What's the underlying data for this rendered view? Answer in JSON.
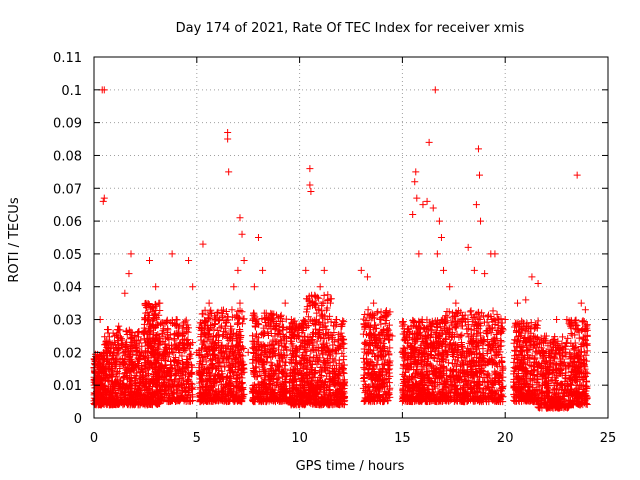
{
  "chart_data": {
    "type": "scatter",
    "title": "Day 174 of 2021, Rate Of TEC Index for receiver xmis",
    "xlabel": "GPS time / hours",
    "ylabel": "ROTI / TECUs",
    "xlim": [
      0,
      25
    ],
    "ylim": [
      0,
      0.11
    ],
    "xticks": [
      0,
      5,
      10,
      15,
      20,
      25
    ],
    "yticks": [
      0,
      0.01,
      0.02,
      0.03,
      0.04,
      0.05,
      0.06,
      0.07,
      0.08,
      0.09,
      0.1,
      0.11
    ],
    "xtick_labels": [
      "0",
      "5",
      "10",
      "15",
      "20",
      "25"
    ],
    "ytick_labels": [
      "0",
      "0.01",
      "0.02",
      "0.03",
      "0.04",
      "0.05",
      "0.06",
      "0.07",
      "0.08",
      "0.09",
      "0.1",
      "0.11"
    ],
    "grid": true,
    "marker": "+",
    "color": "#ff0000",
    "series": [
      {
        "points": [
          [
            0.1,
            0.012
          ],
          [
            0.2,
            0.018
          ],
          [
            0.3,
            0.03
          ],
          [
            0.4,
            0.1
          ],
          [
            0.5,
            0.1
          ],
          [
            0.45,
            0.066
          ],
          [
            0.5,
            0.067
          ],
          [
            0.6,
            0.015
          ],
          [
            0.8,
            0.02
          ],
          [
            1.0,
            0.025
          ],
          [
            1.2,
            0.028
          ],
          [
            1.5,
            0.038
          ],
          [
            1.7,
            0.044
          ],
          [
            1.8,
            0.05
          ],
          [
            2.0,
            0.022
          ],
          [
            2.2,
            0.018
          ],
          [
            2.5,
            0.03
          ],
          [
            2.7,
            0.048
          ],
          [
            3.0,
            0.04
          ],
          [
            3.2,
            0.035
          ],
          [
            3.5,
            0.02
          ],
          [
            3.8,
            0.05
          ],
          [
            4.0,
            0.03
          ],
          [
            4.3,
            0.025
          ],
          [
            4.6,
            0.048
          ],
          [
            4.8,
            0.04
          ],
          [
            5.0,
            0.02
          ],
          [
            5.3,
            0.053
          ],
          [
            5.6,
            0.035
          ],
          [
            5.9,
            0.03
          ],
          [
            6.2,
            0.028
          ],
          [
            6.5,
            0.087
          ],
          [
            6.5,
            0.085
          ],
          [
            6.55,
            0.075
          ],
          [
            6.8,
            0.04
          ],
          [
            7.0,
            0.045
          ],
          [
            7.1,
            0.061
          ],
          [
            7.2,
            0.056
          ],
          [
            7.3,
            0.048
          ],
          [
            7.1,
            0.035
          ],
          [
            7.5,
            0.02
          ],
          [
            7.8,
            0.04
          ],
          [
            8.0,
            0.055
          ],
          [
            8.2,
            0.045
          ],
          [
            8.5,
            0.03
          ],
          [
            8.8,
            0.025
          ],
          [
            9.0,
            0.028
          ],
          [
            9.3,
            0.035
          ],
          [
            9.6,
            0.03
          ],
          [
            10.0,
            0.028
          ],
          [
            10.3,
            0.045
          ],
          [
            10.5,
            0.076
          ],
          [
            10.5,
            0.071
          ],
          [
            10.55,
            0.069
          ],
          [
            10.8,
            0.035
          ],
          [
            11.0,
            0.04
          ],
          [
            11.2,
            0.045
          ],
          [
            11.5,
            0.035
          ],
          [
            11.8,
            0.03
          ],
          [
            12.0,
            0.025
          ],
          [
            13.0,
            0.045
          ],
          [
            13.3,
            0.043
          ],
          [
            13.6,
            0.035
          ],
          [
            13.9,
            0.03
          ],
          [
            14.2,
            0.032
          ],
          [
            14.5,
            0.025
          ],
          [
            15.0,
            0.028
          ],
          [
            15.2,
            0.025
          ],
          [
            15.5,
            0.062
          ],
          [
            15.6,
            0.072
          ],
          [
            15.65,
            0.075
          ],
          [
            15.7,
            0.067
          ],
          [
            15.8,
            0.05
          ],
          [
            16.0,
            0.065
          ],
          [
            16.2,
            0.066
          ],
          [
            16.3,
            0.084
          ],
          [
            16.5,
            0.064
          ],
          [
            16.6,
            0.1
          ],
          [
            16.7,
            0.05
          ],
          [
            16.8,
            0.06
          ],
          [
            16.9,
            0.055
          ],
          [
            17.0,
            0.045
          ],
          [
            17.3,
            0.04
          ],
          [
            17.6,
            0.035
          ],
          [
            17.9,
            0.03
          ],
          [
            18.2,
            0.052
          ],
          [
            18.5,
            0.045
          ],
          [
            18.6,
            0.065
          ],
          [
            18.7,
            0.082
          ],
          [
            18.75,
            0.074
          ],
          [
            18.8,
            0.06
          ],
          [
            19.0,
            0.044
          ],
          [
            19.3,
            0.05
          ],
          [
            19.5,
            0.05
          ],
          [
            19.7,
            0.03
          ],
          [
            20.0,
            0.03
          ],
          [
            20.6,
            0.035
          ],
          [
            21.0,
            0.036
          ],
          [
            21.3,
            0.043
          ],
          [
            21.6,
            0.041
          ],
          [
            22.0,
            0.025
          ],
          [
            22.5,
            0.03
          ],
          [
            23.0,
            0.03
          ],
          [
            23.5,
            0.074
          ],
          [
            23.7,
            0.035
          ],
          [
            23.9,
            0.033
          ]
        ],
        "bands": [
          {
            "x": [
              0.0,
              0.5
            ],
            "low": 0.004,
            "high": 0.02,
            "count": 220
          },
          {
            "x": [
              0.5,
              2.4
            ],
            "low": 0.004,
            "high": 0.027,
            "count": 520
          },
          {
            "x": [
              2.4,
              3.2
            ],
            "low": 0.004,
            "high": 0.035,
            "count": 320
          },
          {
            "x": [
              3.2,
              4.8
            ],
            "low": 0.005,
            "high": 0.03,
            "count": 360
          },
          {
            "x": [
              5.1,
              7.3
            ],
            "low": 0.005,
            "high": 0.033,
            "count": 620
          },
          {
            "x": [
              7.7,
              9.4
            ],
            "low": 0.005,
            "high": 0.032,
            "count": 460
          },
          {
            "x": [
              9.5,
              10.3
            ],
            "low": 0.004,
            "high": 0.03,
            "count": 260
          },
          {
            "x": [
              10.3,
              11.6
            ],
            "low": 0.004,
            "high": 0.038,
            "count": 380
          },
          {
            "x": [
              11.6,
              12.2
            ],
            "low": 0.004,
            "high": 0.03,
            "count": 170
          },
          {
            "x": [
              13.1,
              14.4
            ],
            "low": 0.005,
            "high": 0.033,
            "count": 340
          },
          {
            "x": [
              15.0,
              17.0
            ],
            "low": 0.005,
            "high": 0.03,
            "count": 600
          },
          {
            "x": [
              17.0,
              19.9
            ],
            "low": 0.005,
            "high": 0.033,
            "count": 720
          },
          {
            "x": [
              20.4,
              21.6
            ],
            "low": 0.005,
            "high": 0.03,
            "count": 340
          },
          {
            "x": [
              21.6,
              23.1
            ],
            "low": 0.003,
            "high": 0.025,
            "count": 360
          },
          {
            "x": [
              23.1,
              24.0
            ],
            "low": 0.004,
            "high": 0.03,
            "count": 260
          }
        ]
      }
    ]
  }
}
